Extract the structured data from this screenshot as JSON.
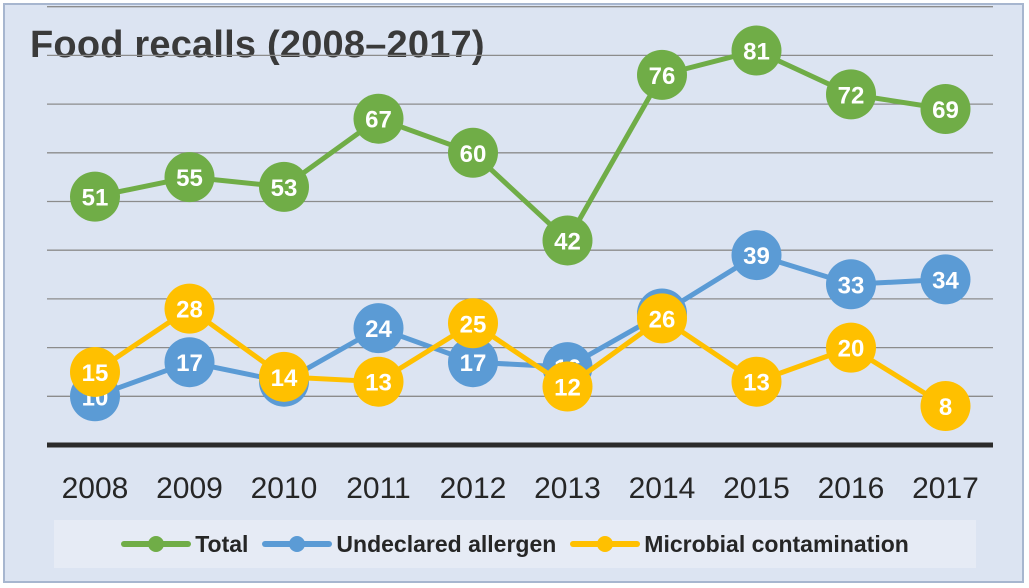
{
  "chart_data": {
    "type": "line",
    "title": "Food recalls (2008–2017)",
    "x": [
      "2008",
      "2009",
      "2010",
      "2011",
      "2012",
      "2013",
      "2014",
      "2015",
      "2016",
      "2017"
    ],
    "series": [
      {
        "name": "Total",
        "color": "#70ad47",
        "values": [
          51,
          55,
          53,
          67,
          60,
          42,
          76,
          81,
          72,
          69
        ]
      },
      {
        "name": "Undeclared allergen",
        "color": "#5b9bd5",
        "values": [
          10,
          17,
          13,
          24,
          17,
          16,
          27,
          39,
          33,
          34
        ]
      },
      {
        "name": "Microbial contamination",
        "color": "#ffc000",
        "values": [
          15,
          28,
          14,
          13,
          25,
          12,
          26,
          13,
          20,
          8
        ]
      }
    ],
    "ylim": [
      0,
      90
    ],
    "grid": true,
    "legend": "bottom"
  }
}
